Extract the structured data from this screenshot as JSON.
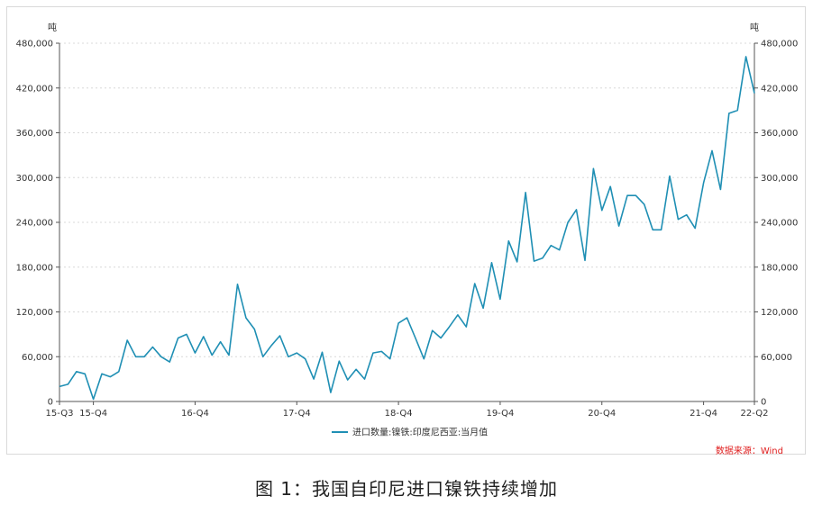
{
  "caption": "图 1：我国自印尼进口镍铁持续增加",
  "source": "数据来源：Wind",
  "chart_data": {
    "type": "line",
    "y_unit_left": "吨",
    "y_unit_right": "吨",
    "ylim": [
      0,
      480000
    ],
    "y_ticks": [
      "0",
      "60,000",
      "120,000",
      "180,000",
      "240,000",
      "300,000",
      "360,000",
      "420,000",
      "480,000"
    ],
    "y_tick_values": [
      0,
      60000,
      120000,
      180000,
      240000,
      300000,
      360000,
      420000,
      480000
    ],
    "x_tick_labels": [
      "15-Q3",
      "15-Q4",
      "16-Q4",
      "17-Q4",
      "18-Q4",
      "19-Q4",
      "20-Q4",
      "21-Q4",
      "22-Q2"
    ],
    "x_tick_index": [
      0,
      4,
      16,
      28,
      40,
      52,
      64,
      76,
      82
    ],
    "grid": "horizontal dashed",
    "legend_position": "bottom-center",
    "series": [
      {
        "name": "进口数量:镍铁:印度尼西亚:当月值",
        "color": "#1f8fb4",
        "values": [
          20000,
          23000,
          40000,
          37000,
          3000,
          37000,
          33000,
          40000,
          82000,
          60000,
          60000,
          73000,
          60000,
          53000,
          85000,
          90000,
          65000,
          87000,
          62000,
          80000,
          62000,
          157000,
          112000,
          97000,
          60000,
          75000,
          88000,
          60000,
          65000,
          57000,
          30000,
          66000,
          12000,
          54000,
          29000,
          43000,
          30000,
          65000,
          67000,
          57000,
          105000,
          112000,
          85000,
          57000,
          95000,
          85000,
          100000,
          116000,
          100000,
          158000,
          125000,
          186000,
          137000,
          215000,
          187000,
          280000,
          188000,
          192000,
          209000,
          203000,
          240000,
          257000,
          189000,
          312000,
          256000,
          288000,
          235000,
          276000,
          276000,
          264000,
          230000,
          230000,
          302000,
          244000,
          250000,
          232000,
          293000,
          336000,
          284000,
          386000,
          390000,
          462000,
          413000
        ]
      }
    ]
  }
}
